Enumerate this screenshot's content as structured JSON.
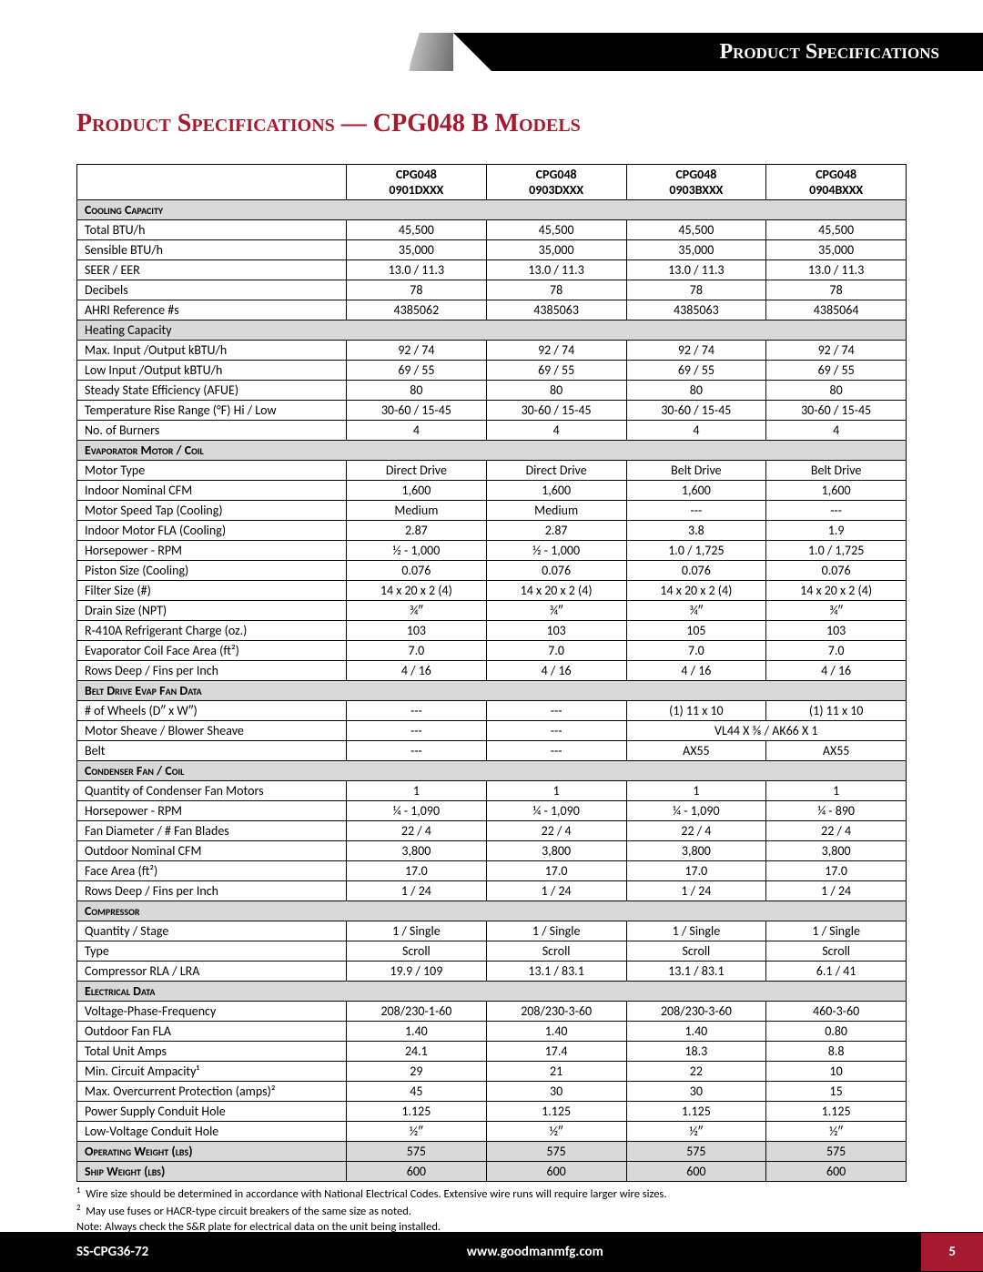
{
  "banner_label": "Product Specifications",
  "page_title": "Product Specifications — CPG048 B Models",
  "columns": [
    {
      "line1": "CPG048",
      "line2": "0901DXXX"
    },
    {
      "line1": "CPG048",
      "line2": "0903DXXX"
    },
    {
      "line1": "CPG048",
      "line2": "0903BXXX"
    },
    {
      "line1": "CPG048",
      "line2": "0904BXXX"
    }
  ],
  "sections": [
    {
      "header": "Cooling Capacity",
      "rows": [
        {
          "label": "Total BTU/h",
          "v": [
            "45,500",
            "45,500",
            "45,500",
            "45,500"
          ]
        },
        {
          "label": "Sensible BTU/h",
          "v": [
            "35,000",
            "35,000",
            "35,000",
            "35,000"
          ]
        },
        {
          "label": "SEER / EER",
          "v": [
            "13.0 / 11.3",
            "13.0 / 11.3",
            "13.0 / 11.3",
            "13.0 / 11.3"
          ]
        },
        {
          "label": "Decibels",
          "v": [
            "78",
            "78",
            "78",
            "78"
          ]
        },
        {
          "label": "AHRI Reference #s",
          "v": [
            "4385062",
            "4385063",
            "4385063",
            "4385064"
          ]
        }
      ]
    },
    {
      "subheader": "Heating Capacity",
      "rows": [
        {
          "label": "Max. Input /Output kBTU/h",
          "v": [
            "92 / 74",
            "92 / 74",
            "92 / 74",
            "92 / 74"
          ]
        },
        {
          "label": "Low Input /Output kBTU/h",
          "v": [
            "69 / 55",
            "69 / 55",
            "69 / 55",
            "69 / 55"
          ]
        },
        {
          "label": "Steady State Efficiency (AFUE)",
          "v": [
            "80",
            "80",
            "80",
            "80"
          ]
        },
        {
          "label": "Temperature Rise Range (°F) Hi / Low",
          "v": [
            "30-60 / 15-45",
            "30-60 / 15-45",
            "30-60 / 15-45",
            "30-60 / 15-45"
          ]
        },
        {
          "label": "No. of Burners",
          "v": [
            "4",
            "4",
            "4",
            "4"
          ]
        }
      ]
    },
    {
      "header": "Evaporator Motor / Coil",
      "rows": [
        {
          "label": "Motor Type",
          "v": [
            "Direct Drive",
            "Direct Drive",
            "Belt Drive",
            "Belt Drive"
          ]
        },
        {
          "label": "Indoor Nominal CFM",
          "v": [
            "1,600",
            "1,600",
            "1,600",
            "1,600"
          ]
        },
        {
          "label": "Motor Speed Tap (Cooling)",
          "v": [
            "Medium",
            "Medium",
            "---",
            "---"
          ]
        },
        {
          "label": "Indoor Motor FLA (Cooling)",
          "v": [
            "2.87",
            "2.87",
            "3.8",
            "1.9"
          ]
        },
        {
          "label": "Horsepower - RPM",
          "v": [
            "½ - 1,000",
            "½ - 1,000",
            "1.0 / 1,725",
            "1.0 / 1,725"
          ]
        },
        {
          "label": "Piston Size (Cooling)",
          "v": [
            "0.076",
            "0.076",
            "0.076",
            "0.076"
          ]
        },
        {
          "label": "Filter Size (#)",
          "v": [
            "14 x 20 x 2 (4)",
            "14 x 20 x 2 (4)",
            "14 x 20 x 2 (4)",
            "14 x 20 x 2 (4)"
          ]
        },
        {
          "label": "Drain Size (NPT)",
          "v": [
            "¾″",
            "¾″",
            "¾″",
            "¾″"
          ]
        },
        {
          "label": "R-410A Refrigerant Charge (oz.)",
          "v": [
            "103",
            "103",
            "105",
            "103"
          ]
        },
        {
          "label": "Evaporator Coil Face Area (ft²)",
          "v": [
            "7.0",
            "7.0",
            "7.0",
            "7.0"
          ]
        },
        {
          "label": "Rows Deep / Fins per Inch",
          "v": [
            "4 / 16",
            "4 / 16",
            "4 / 16",
            "4 / 16"
          ]
        }
      ]
    },
    {
      "header": "Belt Drive Evap Fan Data",
      "rows": [
        {
          "label": "# of Wheels (D″ x W″)",
          "v": [
            "---",
            "---",
            "(1) 11 x 10",
            "(1) 11 x 10"
          ]
        },
        {
          "label": "Motor Sheave / Blower Sheave",
          "v": [
            "---",
            "---"
          ],
          "span": "VL44 X ⅝ / AK66 X 1"
        },
        {
          "label": "Belt",
          "v": [
            "---",
            "---",
            "AX55",
            "AX55"
          ]
        }
      ]
    },
    {
      "header": "Condenser Fan / Coil",
      "rows": [
        {
          "label": "Quantity of Condenser Fan Motors",
          "v": [
            "1",
            "1",
            "1",
            "1"
          ]
        },
        {
          "label": "Horsepower - RPM",
          "v": [
            "¼ - 1,090",
            "¼ - 1,090",
            "¼ - 1,090",
            "¼ - 890"
          ]
        },
        {
          "label": "Fan Diameter / # Fan Blades",
          "v": [
            "22 / 4",
            "22 / 4",
            "22 / 4",
            "22 / 4"
          ]
        },
        {
          "label": "Outdoor Nominal CFM",
          "v": [
            "3,800",
            "3,800",
            "3,800",
            "3,800"
          ]
        },
        {
          "label": "Face Area (ft²)",
          "v": [
            "17.0",
            "17.0",
            "17.0",
            "17.0"
          ]
        },
        {
          "label": "Rows Deep / Fins per Inch",
          "v": [
            "1 / 24",
            "1 / 24",
            "1 / 24",
            "1 / 24"
          ]
        }
      ]
    },
    {
      "header": "Compressor",
      "rows": [
        {
          "label": "Quantity / Stage",
          "v": [
            "1 / Single",
            "1 / Single",
            "1 / Single",
            "1 / Single"
          ]
        },
        {
          "label": "Type",
          "v": [
            "Scroll",
            "Scroll",
            "Scroll",
            "Scroll"
          ]
        },
        {
          "label": "Compressor RLA / LRA",
          "v": [
            "19.9 / 109",
            "13.1 / 83.1",
            "13.1 / 83.1",
            "6.1 / 41"
          ]
        }
      ]
    },
    {
      "header": "Electrical Data",
      "rows": [
        {
          "label": "Voltage-Phase-Frequency",
          "v": [
            "208/230-1-60",
            "208/230-3-60",
            "208/230-3-60",
            "460-3-60"
          ]
        },
        {
          "label": "Outdoor Fan FLA",
          "v": [
            "1.40",
            "1.40",
            "1.40",
            "0.80"
          ]
        },
        {
          "label": "Total Unit Amps",
          "v": [
            "24.1",
            "17.4",
            "18.3",
            "8.8"
          ]
        },
        {
          "label": "Min. Circuit Ampacity¹",
          "v": [
            "29",
            "21",
            "22",
            "10"
          ]
        },
        {
          "label": "Max. Overcurrent Protection (amps)²",
          "v": [
            "45",
            "30",
            "30",
            "15"
          ]
        },
        {
          "label": "Power Supply Conduit Hole",
          "v": [
            "1.125",
            "1.125",
            "1.125",
            "1.125"
          ]
        },
        {
          "label": "Low-Voltage Conduit Hole",
          "v": [
            "½″",
            "½″",
            "½″",
            "½″"
          ]
        }
      ]
    },
    {
      "header": "Operating Weight (lbs)",
      "is_value_row": true,
      "v": [
        "575",
        "575",
        "575",
        "575"
      ]
    },
    {
      "header": "Ship Weight (lbs)",
      "is_value_row": true,
      "v": [
        "600",
        "600",
        "600",
        "600"
      ]
    }
  ],
  "footnotes": {
    "f1": "Wire size should be determined in accordance with National Electrical Codes. Extensive wire runs will require larger wire sizes.",
    "f2": "May use fuses or HACR-type circuit breakers of the same size as noted.",
    "note": "Note: Always check the S&R plate for electrical data on the unit being installed."
  },
  "footer": {
    "doc": "SS-CPG36-72",
    "url": "www.goodmanmfg.com",
    "page": "5"
  }
}
